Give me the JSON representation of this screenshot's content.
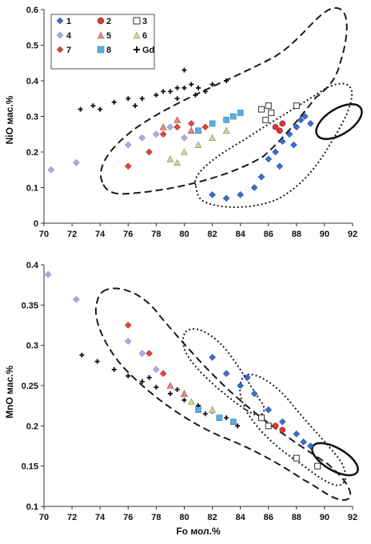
{
  "chart_data": [
    {
      "type": "scatter",
      "title": "",
      "xlabel": "",
      "ylabel": "NiO мас.%",
      "xlim": [
        70,
        92
      ],
      "ylim": [
        0,
        0.6
      ],
      "xticks": [
        "70",
        "72",
        "74",
        "76",
        "78",
        "80",
        "82",
        "84",
        "86",
        "88",
        "90",
        "92"
      ],
      "yticks": [
        "0",
        "0.1",
        "0.2",
        "0.3",
        "0.4",
        "0.5",
        "0.6"
      ],
      "grid": false,
      "legend_position": "top-left",
      "legend": [
        "1",
        "2",
        "3",
        "4",
        "5",
        "6",
        "7",
        "8",
        "Gd"
      ],
      "series": [
        {
          "name": "Gd",
          "marker": "plus",
          "color": "#111111",
          "approx_points": [
            [
              72.6,
              0.32
            ],
            [
              73.5,
              0.33
            ],
            [
              74,
              0.32
            ],
            [
              75,
              0.34
            ],
            [
              76,
              0.35
            ],
            [
              77,
              0.35
            ],
            [
              78,
              0.36
            ],
            [
              79,
              0.37
            ],
            [
              79.5,
              0.38
            ],
            [
              80,
              0.38
            ],
            [
              80.5,
              0.39
            ],
            [
              81,
              0.38
            ],
            [
              82,
              0.39
            ],
            [
              83,
              0.4
            ],
            [
              80,
              0.43
            ],
            [
              79.5,
              0.35
            ],
            [
              81.5,
              0.37
            ],
            [
              76.5,
              0.33
            ],
            [
              78.5,
              0.37
            ],
            [
              80.8,
              0.36
            ]
          ]
        },
        {
          "name": "1",
          "marker": "diamond",
          "color": "#3a6fc8",
          "approx_points": [
            [
              82,
              0.08
            ],
            [
              83,
              0.07
            ],
            [
              84,
              0.08
            ],
            [
              85,
              0.1
            ],
            [
              85.5,
              0.13
            ],
            [
              86,
              0.18
            ],
            [
              86.5,
              0.2
            ],
            [
              87,
              0.23
            ],
            [
              87.5,
              0.25
            ],
            [
              88,
              0.27
            ],
            [
              88.3,
              0.29
            ],
            [
              88.6,
              0.3
            ],
            [
              89,
              0.28
            ],
            [
              87.8,
              0.22
            ],
            [
              86.8,
              0.16
            ]
          ]
        },
        {
          "name": "2",
          "marker": "circle",
          "color": "#d43a3a",
          "approx_points": [
            [
              86.5,
              0.27
            ],
            [
              87,
              0.28
            ],
            [
              86.8,
              0.26
            ]
          ]
        },
        {
          "name": "3",
          "marker": "square-open",
          "color": "#ffffff",
          "approx_points": [
            [
              85.5,
              0.32
            ],
            [
              86,
              0.33
            ],
            [
              86.2,
              0.31
            ],
            [
              85.8,
              0.29
            ],
            [
              88,
              0.33
            ]
          ]
        },
        {
          "name": "4",
          "marker": "diamond",
          "color": "#a8aee0",
          "approx_points": [
            [
              70.5,
              0.15
            ],
            [
              72.3,
              0.17
            ],
            [
              76,
              0.22
            ],
            [
              77,
              0.24
            ],
            [
              78,
              0.25
            ],
            [
              79,
              0.27
            ],
            [
              80,
              0.24
            ]
          ]
        },
        {
          "name": "5",
          "marker": "triangle",
          "color": "#e88a8a",
          "approx_points": [
            [
              78.5,
              0.27
            ],
            [
              79.5,
              0.29
            ],
            [
              80.5,
              0.26
            ]
          ]
        },
        {
          "name": "6",
          "marker": "triangle",
          "color": "#c7d9a0",
          "approx_points": [
            [
              79,
              0.18
            ],
            [
              80,
              0.2
            ],
            [
              81,
              0.22
            ],
            [
              82,
              0.24
            ],
            [
              83,
              0.26
            ],
            [
              79.5,
              0.17
            ]
          ]
        },
        {
          "name": "7",
          "marker": "diamond",
          "color": "#d84a3a",
          "approx_points": [
            [
              76,
              0.16
            ],
            [
              77.5,
              0.2
            ],
            [
              78.5,
              0.25
            ],
            [
              79.5,
              0.27
            ],
            [
              80.5,
              0.28
            ],
            [
              81.5,
              0.27
            ]
          ]
        },
        {
          "name": "8",
          "marker": "square",
          "color": "#5aaee0",
          "approx_points": [
            [
              81,
              0.26
            ],
            [
              82,
              0.28
            ],
            [
              83,
              0.29
            ],
            [
              83.5,
              0.3
            ],
            [
              84,
              0.31
            ]
          ]
        }
      ]
    },
    {
      "type": "scatter",
      "title": "",
      "xlabel": "Fo мол.%",
      "ylabel": "MnO мас.%",
      "xlim": [
        70,
        92
      ],
      "ylim": [
        0.1,
        0.4
      ],
      "xticks": [
        "70",
        "72",
        "74",
        "76",
        "78",
        "80",
        "82",
        "84",
        "86",
        "88",
        "90",
        "92"
      ],
      "yticks": [
        "0.1",
        "0.15",
        "0.2",
        "0.25",
        "0.3",
        "0.35",
        "0.4"
      ],
      "grid": false,
      "series": [
        {
          "name": "Gd",
          "marker": "plus",
          "color": "#111111",
          "approx_points": [
            [
              72.7,
              0.288
            ],
            [
              73.8,
              0.28
            ],
            [
              75,
              0.27
            ],
            [
              76,
              0.262
            ],
            [
              77,
              0.255
            ],
            [
              78,
              0.248
            ],
            [
              79,
              0.24
            ],
            [
              80,
              0.232
            ],
            [
              81,
              0.225
            ],
            [
              82,
              0.218
            ],
            [
              83,
              0.21
            ],
            [
              83.8,
              0.2
            ],
            [
              77.5,
              0.26
            ],
            [
              79.5,
              0.245
            ],
            [
              81.5,
              0.215
            ]
          ]
        },
        {
          "name": "1",
          "marker": "diamond",
          "color": "#3a6fc8",
          "approx_points": [
            [
              82,
              0.285
            ],
            [
              83,
              0.265
            ],
            [
              84,
              0.25
            ],
            [
              85,
              0.24
            ],
            [
              86,
              0.22
            ],
            [
              87,
              0.205
            ],
            [
              88,
              0.19
            ],
            [
              88.5,
              0.18
            ],
            [
              89,
              0.175
            ],
            [
              84.5,
              0.26
            ]
          ]
        },
        {
          "name": "2",
          "marker": "circle",
          "color": "#d43a3a",
          "approx_points": [
            [
              86.5,
              0.2
            ],
            [
              87,
              0.195
            ]
          ]
        },
        {
          "name": "3",
          "marker": "square-open",
          "color": "#ffffff",
          "approx_points": [
            [
              85.5,
              0.21
            ],
            [
              86,
              0.2
            ],
            [
              88,
              0.16
            ],
            [
              89.5,
              0.15
            ]
          ]
        },
        {
          "name": "4",
          "marker": "diamond",
          "color": "#a8aee0",
          "approx_points": [
            [
              70.3,
              0.388
            ],
            [
              72.3,
              0.357
            ],
            [
              76,
              0.305
            ],
            [
              77,
              0.29
            ],
            [
              78,
              0.27
            ]
          ]
        },
        {
          "name": "5",
          "marker": "triangle",
          "color": "#e88a8a",
          "approx_points": [
            [
              79,
              0.25
            ],
            [
              80,
              0.24
            ]
          ]
        },
        {
          "name": "6",
          "marker": "triangle",
          "color": "#c7d9a0",
          "approx_points": [
            [
              80.5,
              0.23
            ],
            [
              82,
              0.22
            ]
          ]
        },
        {
          "name": "7",
          "marker": "diamond",
          "color": "#d84a3a",
          "approx_points": [
            [
              76,
              0.325
            ],
            [
              77.5,
              0.29
            ],
            [
              78.5,
              0.265
            ]
          ]
        },
        {
          "name": "8",
          "marker": "square",
          "color": "#5aaee0",
          "approx_points": [
            [
              81,
              0.22
            ],
            [
              82.5,
              0.21
            ],
            [
              83.5,
              0.205
            ]
          ]
        }
      ]
    }
  ]
}
